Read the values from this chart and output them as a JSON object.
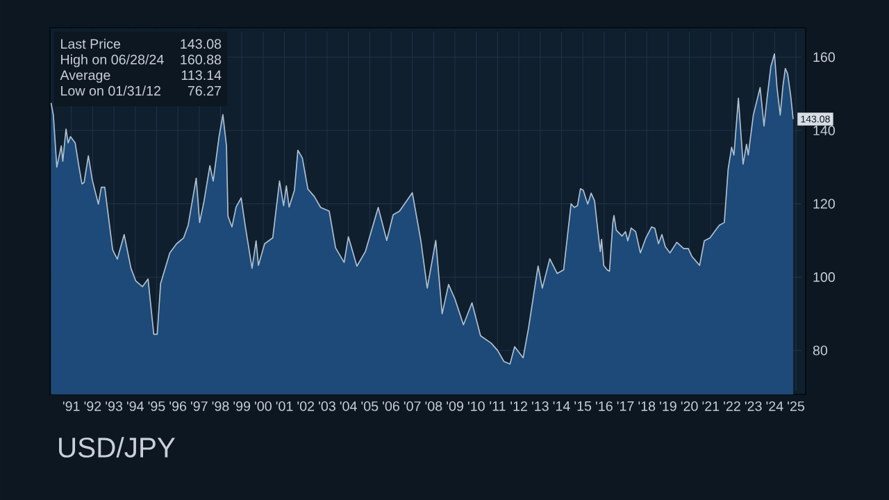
{
  "chart_data": {
    "type": "area",
    "title": "USD/JPY",
    "x": [
      "1990-07-19",
      "1990-08-28",
      "1990-10-26",
      "1991-01-12",
      "1991-02-07",
      "1991-04-01",
      "1991-05-07",
      "1991-06-17",
      "1991-09-06",
      "1991-11-03",
      "1992-01-01",
      "1992-02-07",
      "1992-04-19",
      "1992-06-24",
      "1992-10-08",
      "1992-11-28",
      "1993-01-26",
      "1993-06-09",
      "1993-08-28",
      "1993-12-24",
      "1994-04-19",
      "1994-07-08",
      "1994-11-03",
      "1995-02-07",
      "1995-05-14",
      "1995-07-12",
      "1995-09-09",
      "1996-02-14",
      "1996-06-09",
      "1996-10-08",
      "1996-12-24",
      "1997-05-11",
      "1997-07-08",
      "1997-09-24",
      "1998-01-01",
      "1998-02-28",
      "1998-06-06",
      "1998-08-11",
      "1998-10-12",
      "1998-11-07",
      "1999-01-15",
      "1999-03-24",
      "1999-06-20",
      "1999-08-28",
      "1999-12-24",
      "2000-03-02",
      "2000-04-12",
      "2000-07-26",
      "2000-12-13",
      "2001-04-08",
      "2001-06-17",
      "2001-08-03",
      "2001-09-20",
      "2001-12-20",
      "2002-02-18",
      "2002-05-03",
      "2002-08-07",
      "2002-11-25",
      "2003-03-13",
      "2003-08-07",
      "2003-11-25",
      "2004-04-19",
      "2004-07-01",
      "2004-11-25",
      "2005-04-19",
      "2005-11-25",
      "2006-04-19",
      "2006-08-07",
      "2006-11-25",
      "2007-07-01",
      "2007-11-25",
      "2008-03-13",
      "2008-08-07",
      "2008-11-25",
      "2009-03-13",
      "2009-07-01",
      "2009-11-25",
      "2010-04-19",
      "2010-09-13",
      "2011-03-13",
      "2011-07-01",
      "2011-10-19",
      "2012-01-31",
      "2012-04-19",
      "2012-09-13",
      "2012-12-13",
      "2013-05-25",
      "2013-08-07",
      "2013-12-13",
      "2014-04-19",
      "2014-08-07",
      "2014-12-13",
      "2015-02-07",
      "2015-04-01",
      "2015-05-21",
      "2015-07-08",
      "2015-09-24",
      "2015-11-21",
      "2016-01-19",
      "2016-03-17",
      "2016-04-26",
      "2016-05-18",
      "2016-06-24",
      "2016-08-21",
      "2016-10-01",
      "2016-11-28",
      "2016-12-17",
      "2017-01-26",
      "2017-05-03",
      "2017-07-01",
      "2017-08-11",
      "2017-10-08",
      "2017-12-24",
      "2018-03-13",
      "2018-06-17",
      "2018-09-24",
      "2018-11-18",
      "2019-01-19",
      "2019-03-17",
      "2019-05-14",
      "2019-08-03",
      "2019-11-28",
      "2020-03-24",
      "2020-06-13",
      "2020-08-11",
      "2020-12-24",
      "2021-03-13",
      "2021-06-20",
      "2021-09-06",
      "2021-11-25",
      "2022-02-21",
      "2022-04-26",
      "2022-06-24",
      "2022-08-03",
      "2022-10-19",
      "2023-01-08",
      "2023-03-06",
      "2023-04-05",
      "2023-07-01",
      "2023-10-26",
      "2024-01-01",
      "2024-02-25",
      "2024-04-28",
      "2024-06-28",
      "2024-08-11",
      "2024-10-05",
      "2024-11-21",
      "2025-01-01",
      "2025-02-10",
      "2025-04-01",
      "2025-05-14"
    ],
    "series": [
      {
        "color": "#1d4a78",
        "values": [
          147.5,
          144.2,
          130,
          135.8,
          131.6,
          140.4,
          136.6,
          138.3,
          136.6,
          130.8,
          125.4,
          125.8,
          133.1,
          126.6,
          119.9,
          124.5,
          124.5,
          107.4,
          104.9,
          111.6,
          102.4,
          99,
          97.4,
          99.5,
          84.4,
          84.4,
          98.2,
          106.6,
          109.1,
          110.7,
          114.1,
          127,
          114.9,
          120.8,
          130.4,
          126.2,
          138.3,
          144.3,
          135.8,
          116.6,
          113.7,
          119.1,
          121.6,
          114.1,
          102.4,
          109.9,
          103.2,
          109.1,
          110.7,
          126.2,
          119.5,
          124.9,
          119.1,
          123.7,
          134.6,
          132.5,
          124,
          122,
          119,
          118,
          108,
          104,
          111,
          103,
          107,
          119,
          110,
          117,
          118,
          123,
          110,
          97,
          110,
          90,
          98,
          94,
          87,
          93,
          84,
          82,
          80,
          77,
          76.3,
          81,
          78,
          86,
          103,
          97,
          105,
          101,
          102,
          120,
          119,
          119.5,
          124.1,
          123.7,
          119.9,
          122.9,
          120.8,
          112.4,
          107,
          110.3,
          103.2,
          102,
          101.6,
          114.9,
          116.8,
          112.8,
          111.2,
          112.4,
          109.9,
          113.4,
          112.4,
          106.6,
          110.7,
          113.7,
          113.3,
          109.1,
          111.6,
          108.3,
          106.6,
          109.5,
          107.8,
          107.8,
          105.7,
          103.2,
          109.9,
          110.7,
          112.4,
          114.1,
          114.9,
          129.5,
          135.4,
          133.3,
          148.8,
          130.8,
          136.2,
          133.3,
          144.2,
          151.7,
          141.2,
          149.1,
          157.5,
          160.9,
          151.7,
          144.2,
          152.1,
          156.9,
          155.5,
          149.6,
          143.1
        ]
      }
    ],
    "xlim": [
      "1990-07-01",
      "2025-12-15"
    ],
    "ylim": [
      68,
      168
    ],
    "xticks": [
      {
        "value": "1991-07-01",
        "label": "'91"
      },
      {
        "value": "1992-07-01",
        "label": "'92"
      },
      {
        "value": "1993-07-01",
        "label": "'93"
      },
      {
        "value": "1994-07-01",
        "label": "'94"
      },
      {
        "value": "1995-07-01",
        "label": "'95"
      },
      {
        "value": "1996-07-01",
        "label": "'96"
      },
      {
        "value": "1997-07-01",
        "label": "'97"
      },
      {
        "value": "1998-07-01",
        "label": "'98"
      },
      {
        "value": "1999-07-01",
        "label": "'99"
      },
      {
        "value": "2000-07-01",
        "label": "'00"
      },
      {
        "value": "2001-07-01",
        "label": "'01"
      },
      {
        "value": "2002-07-01",
        "label": "'02"
      },
      {
        "value": "2003-07-01",
        "label": "'03"
      },
      {
        "value": "2004-07-01",
        "label": "'04"
      },
      {
        "value": "2005-07-01",
        "label": "'05"
      },
      {
        "value": "2006-07-01",
        "label": "'06"
      },
      {
        "value": "2007-07-01",
        "label": "'07"
      },
      {
        "value": "2008-07-01",
        "label": "'08"
      },
      {
        "value": "2009-07-01",
        "label": "'09"
      },
      {
        "value": "2010-07-01",
        "label": "'10"
      },
      {
        "value": "2011-07-01",
        "label": "'11"
      },
      {
        "value": "2012-07-01",
        "label": "'12"
      },
      {
        "value": "2013-07-01",
        "label": "'13"
      },
      {
        "value": "2014-07-01",
        "label": "'14"
      },
      {
        "value": "2015-07-01",
        "label": "'15"
      },
      {
        "value": "2016-07-01",
        "label": "'16"
      },
      {
        "value": "2017-07-01",
        "label": "'17"
      },
      {
        "value": "2018-07-01",
        "label": "'18"
      },
      {
        "value": "2019-07-01",
        "label": "'19"
      },
      {
        "value": "2020-07-01",
        "label": "'20"
      },
      {
        "value": "2021-07-01",
        "label": "'21"
      },
      {
        "value": "2022-07-01",
        "label": "'22"
      },
      {
        "value": "2023-07-01",
        "label": "'23"
      },
      {
        "value": "2024-07-01",
        "label": "'24"
      },
      {
        "value": "2025-07-01",
        "label": "'25"
      }
    ],
    "yticks": [
      80,
      100,
      120,
      140,
      160
    ],
    "grid": true,
    "annotations": [
      "Last Price",
      "143.08",
      "High on 06/28/24",
      "160.88",
      "Average",
      "113.14",
      "Low on 01/31/12",
      "76.27",
      {
        "text": "143.08",
        "x": "2025-05-14",
        "y": 143.1
      }
    ]
  }
}
